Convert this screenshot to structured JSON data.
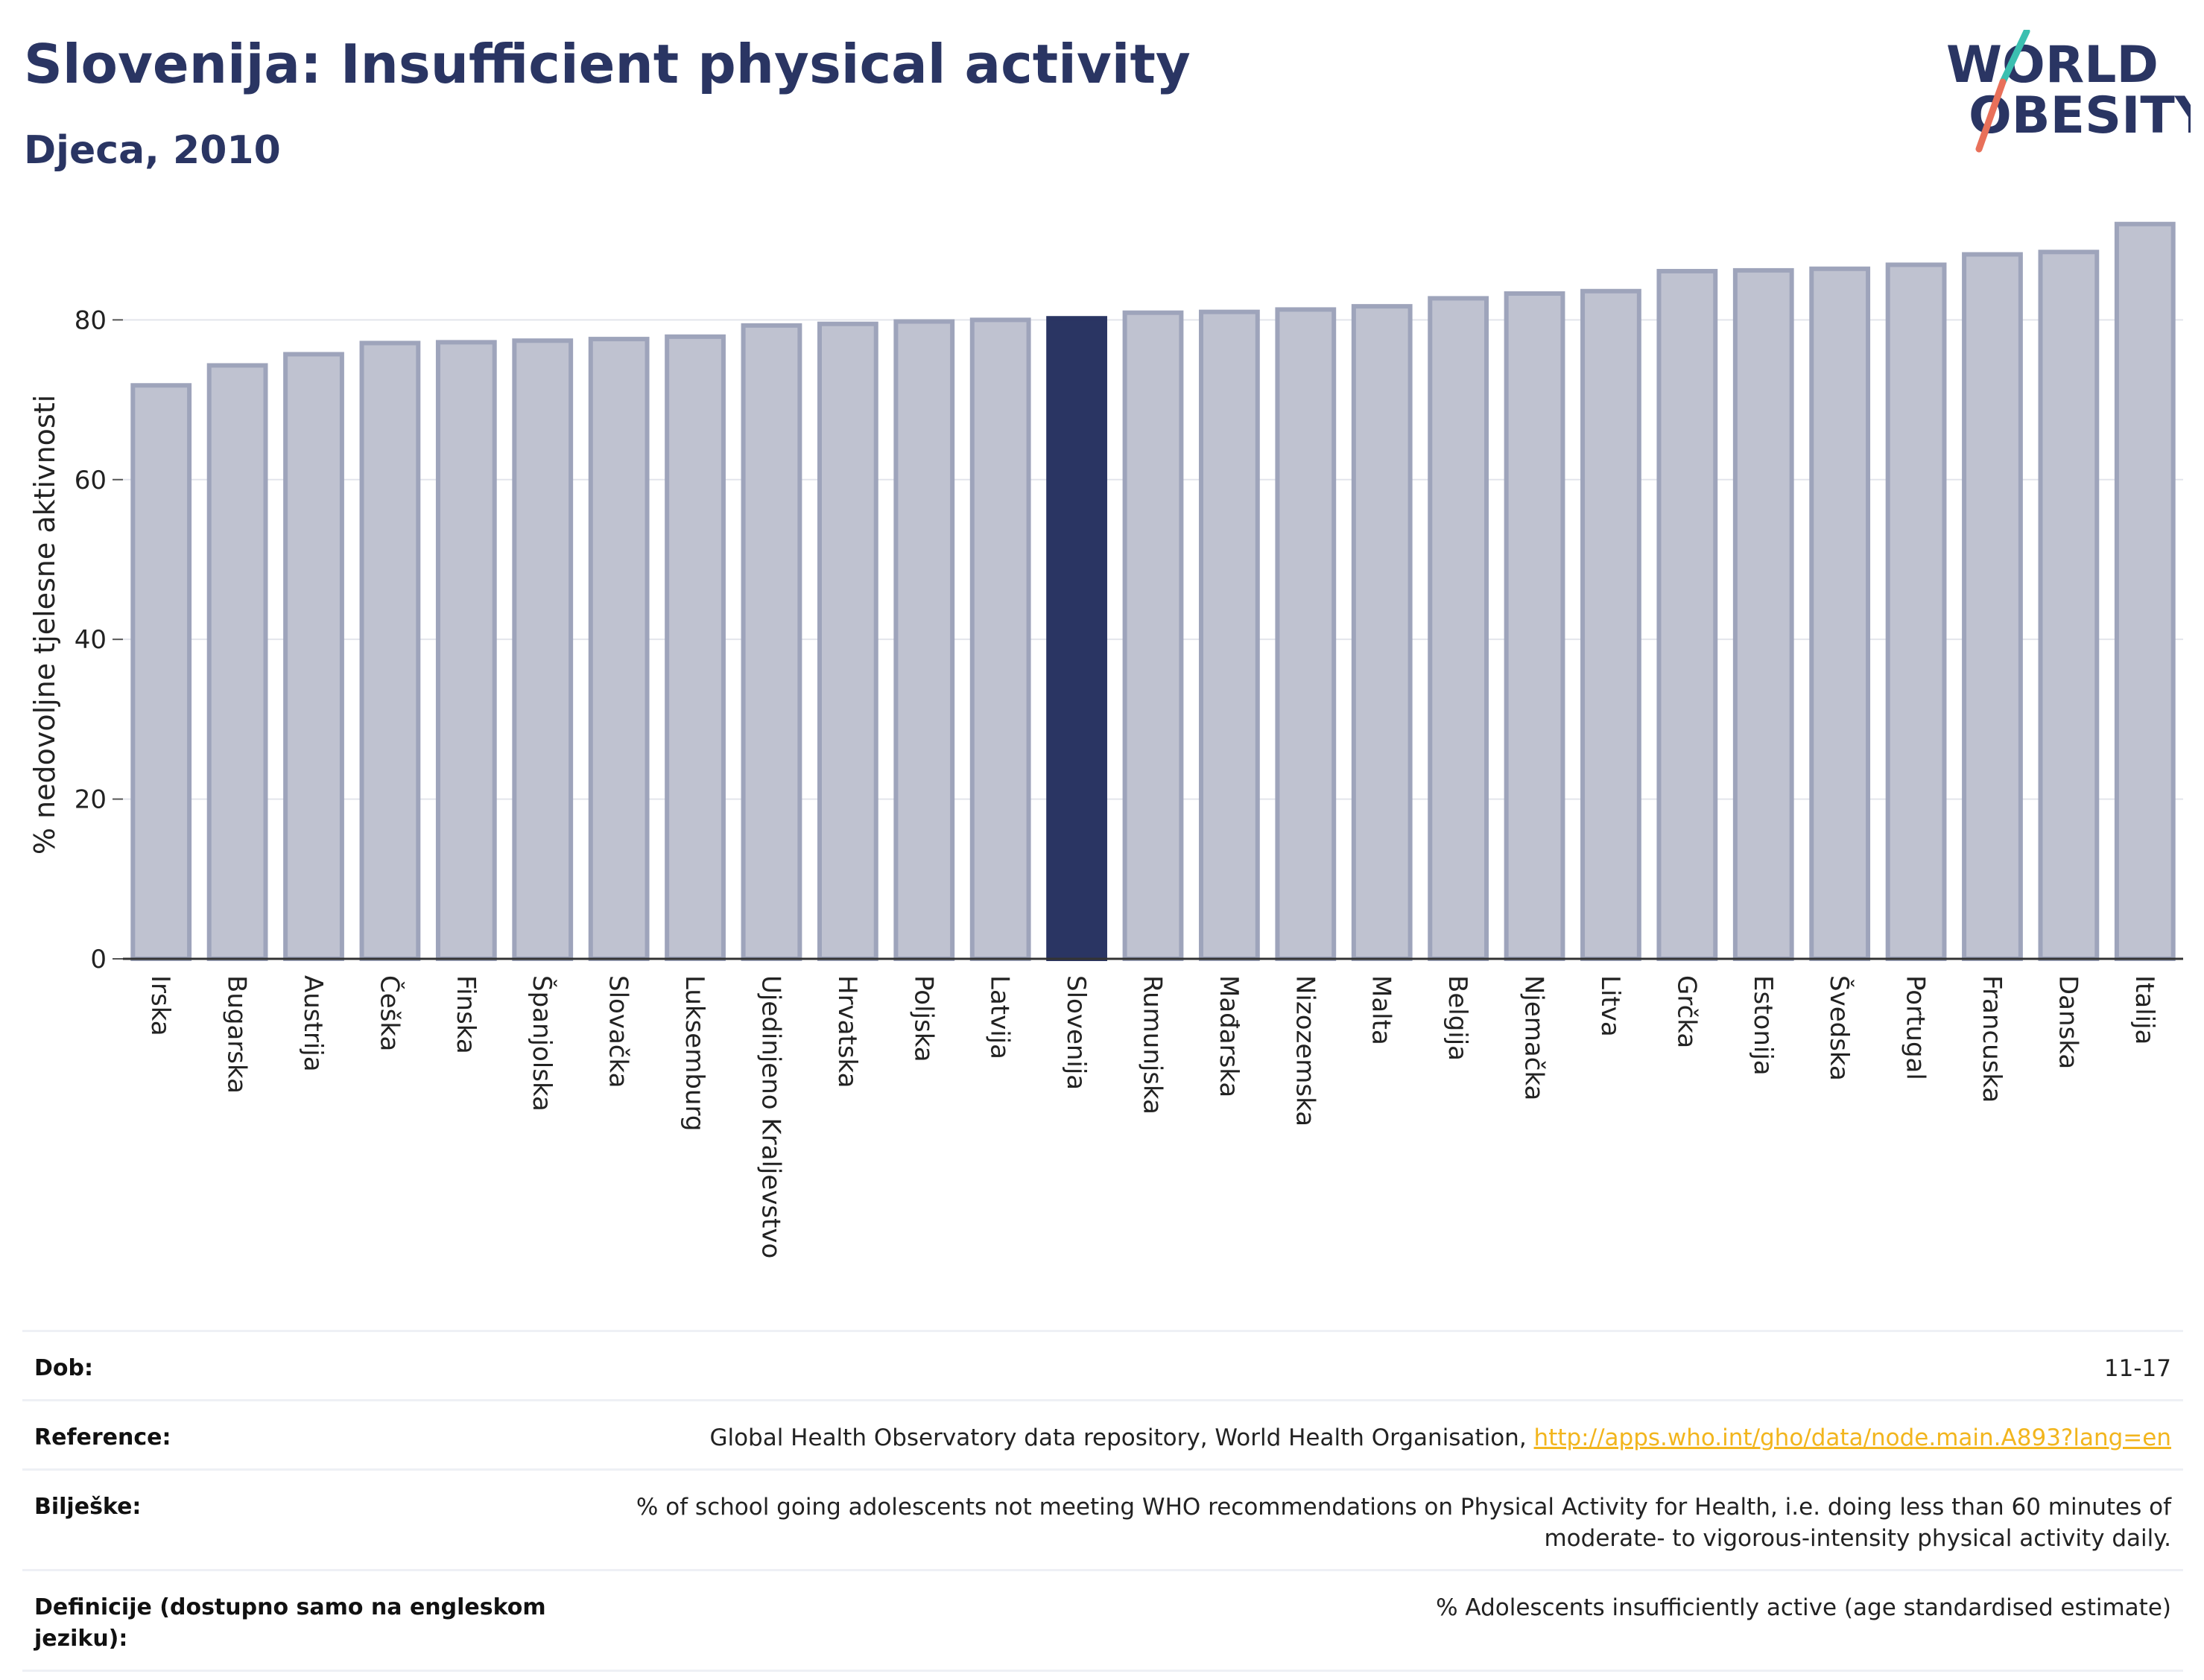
{
  "header": {
    "title": "Slovenija: Insufficient physical activity",
    "subtitle": "Djeca, 2010"
  },
  "logo": {
    "line1": "WORLD",
    "line2": "OBESITY",
    "accent_colors": [
      "#3bbfb0",
      "#e8705a"
    ]
  },
  "chart_data": {
    "type": "bar",
    "title": "",
    "xlabel": "",
    "ylabel": "% nedovoljne tjelesne aktivnosti",
    "ylim": [
      0,
      93
    ],
    "yticks": [
      0,
      20,
      40,
      60,
      80
    ],
    "grid": true,
    "highlight": "Slovenija",
    "colors": {
      "bar": "#bfc2d0",
      "bar_edge": "#9ea4bb",
      "highlight": "#2a3563"
    },
    "categories": [
      "Irska",
      "Bugarska",
      "Austrija",
      "Češka",
      "Finska",
      "Španjolska",
      "Slovačka",
      "Luksemburg",
      "Ujedinjeno Kraljevstvo",
      "Hrvatska",
      "Poljska",
      "Latvija",
      "Slovenija",
      "Rumunjska",
      "Mađarska",
      "Nizozemska",
      "Malta",
      "Belgija",
      "Njemačka",
      "Litva",
      "Grčka",
      "Estonija",
      "Švedska",
      "Portugal",
      "Francuska",
      "Danska",
      "Italija"
    ],
    "values": [
      71.8,
      74.3,
      75.7,
      77.1,
      77.2,
      77.4,
      77.6,
      77.9,
      79.3,
      79.5,
      79.8,
      80.0,
      80.2,
      80.9,
      81.0,
      81.3,
      81.7,
      82.7,
      83.3,
      83.6,
      86.1,
      86.2,
      86.4,
      86.9,
      88.2,
      88.5,
      92.0
    ]
  },
  "footer": {
    "age_label": "Dob:",
    "age_value": "11-17",
    "reference_label": "Reference:",
    "reference_text": "Global Health Observatory data repository, World Health Organisation, ",
    "reference_link": "http://apps.who.int/gho/data/node.main.A893?lang=en",
    "notes_label": "Bilješke:",
    "notes_value": "% of school going adolescents not meeting WHO recommendations on Physical Activity for Health, i.e. doing less than 60 minutes of moderate- to vigorous-intensity physical activity daily.",
    "definitions_label": "Definicije (dostupno samo na engleskom jeziku):",
    "definitions_value": "% Adolescents insufficiently active (age standardised estimate)"
  }
}
